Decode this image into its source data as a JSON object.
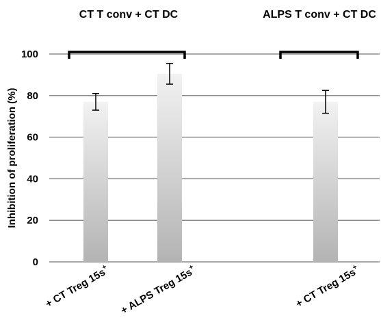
{
  "chart_data": {
    "type": "bar",
    "group_labels": [
      "CT T conv + CT DC",
      "ALPS T conv + CT DC"
    ],
    "categories": [
      {
        "text": "+ CT  Treg 15s",
        "sup": "+"
      },
      {
        "text": "+ ALPS  Treg 15s",
        "sup": "+"
      },
      {
        "text": "+ CT  Treg 15s",
        "sup": "+"
      }
    ],
    "values": [
      77,
      90.5,
      77
    ],
    "errors": [
      4,
      5,
      5.5
    ],
    "ylabel": "Inhibition of proliferation (%)",
    "ylim": [
      0,
      100
    ],
    "yticks": [
      "0",
      "20",
      "40",
      "60",
      "80",
      "100"
    ],
    "grid": true,
    "colors": {
      "bar_top": "#f2f2f2",
      "bar_bottom": "#b3b3b3",
      "grid": "#8c8c8c",
      "bracket": "#000000"
    }
  }
}
